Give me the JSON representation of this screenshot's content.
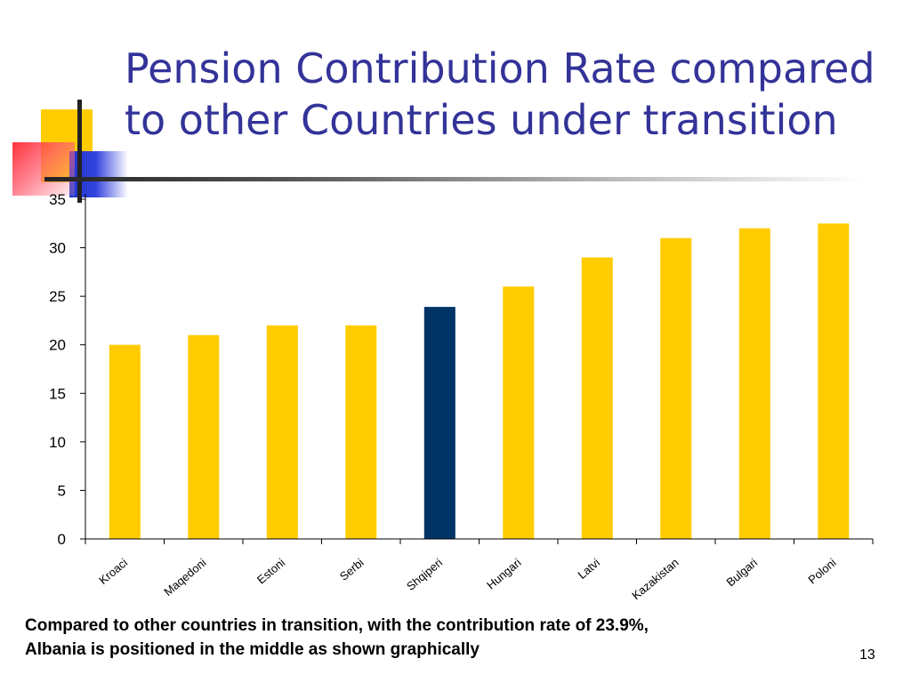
{
  "slide": {
    "title": "Pension Contribution Rate compared to other Countries under transition",
    "caption_line1": "Compared to other countries in transition, with the contribution rate of 23.9%,",
    "caption_line2": "Albania is positioned in the middle as shown graphically",
    "page_number": "13"
  },
  "colors": {
    "title": "#333399",
    "bar": "#ffcc00",
    "highlight_bar": "#003366",
    "deco_yellow": "#ffcc00",
    "deco_blue": "#3344dd",
    "deco_red": "#ff3344"
  },
  "chart_data": {
    "type": "bar",
    "categories": [
      "Kroaci",
      "Maqedoni",
      "Estoni",
      "Serbi",
      "Shqiperi",
      "Hungari",
      "Latvi",
      "Kazakistan",
      "Bulgari",
      "Poloni"
    ],
    "values": [
      20,
      21,
      22,
      22,
      23.9,
      26,
      29,
      31,
      32,
      32.5
    ],
    "highlight_category": "Shqiperi",
    "title": "",
    "xlabel": "",
    "ylabel": "",
    "ylim": [
      0,
      35
    ],
    "yticks": [
      0,
      5,
      10,
      15,
      20,
      25,
      30,
      35
    ],
    "grid": false,
    "legend": "none"
  }
}
